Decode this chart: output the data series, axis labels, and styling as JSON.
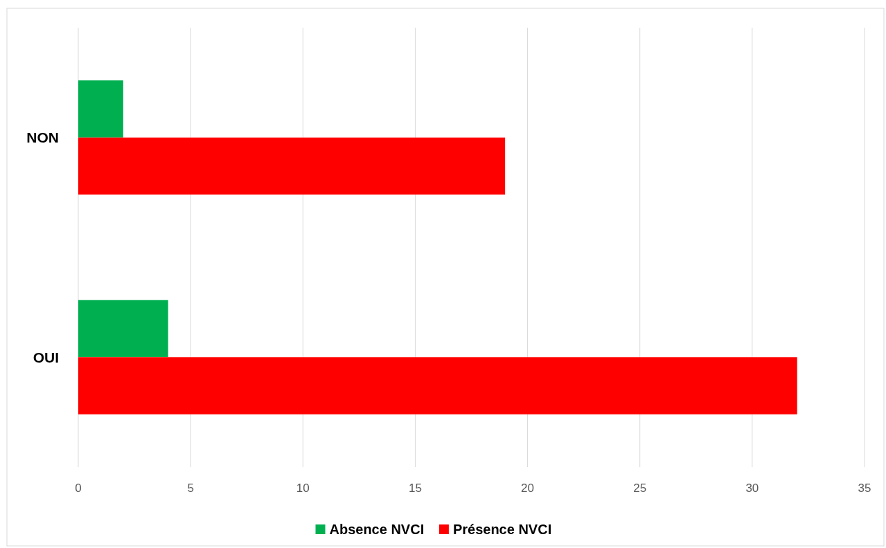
{
  "chart_data": {
    "type": "bar",
    "orientation": "horizontal",
    "categories": [
      "NON",
      "OUI"
    ],
    "series": [
      {
        "name": "Absence NVCI",
        "color": "#00b050",
        "values": [
          2,
          4
        ]
      },
      {
        "name": "Présence NVCI",
        "color": "#ff0000",
        "values": [
          19,
          32
        ]
      }
    ],
    "xlim": [
      0,
      35
    ],
    "xticks": [
      0,
      5,
      10,
      15,
      20,
      25,
      30,
      35
    ],
    "grid": "x",
    "legend": "bottom"
  }
}
